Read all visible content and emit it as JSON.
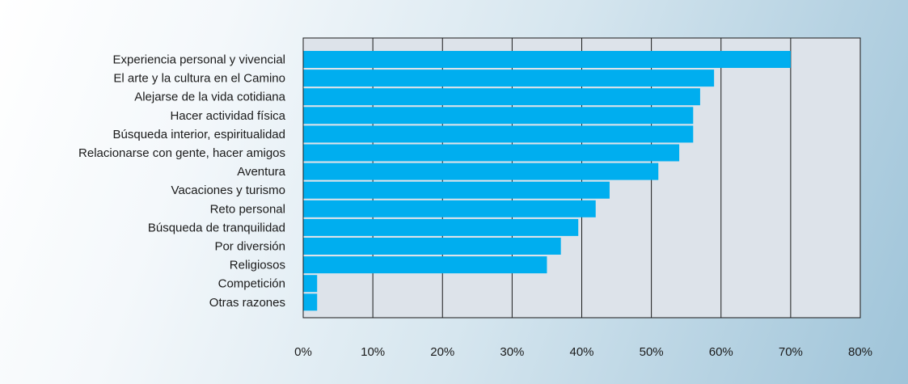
{
  "chart_data": {
    "type": "bar",
    "orientation": "horizontal",
    "categories": [
      "Experiencia personal y vivencial",
      "El arte y la cultura en el Camino",
      "Alejarse de la vida cotidiana",
      "Hacer actividad física",
      "Búsqueda interior, espiritualidad",
      "Relacionarse con gente, hacer amigos",
      "Aventura",
      "Vacaciones y turismo",
      "Reto personal",
      "Búsqueda de tranquilidad",
      "Por diversión",
      "Religiosos",
      "Competición",
      "Otras razones"
    ],
    "values": [
      70,
      59,
      57,
      56,
      56,
      54,
      51,
      44,
      42,
      39.5,
      37,
      35,
      2,
      2
    ],
    "value_unit": "%",
    "xlim": [
      0,
      80
    ],
    "xticks": [
      "0%",
      "10%",
      "20%",
      "30%",
      "40%",
      "50%",
      "60%",
      "70%",
      "80%"
    ],
    "grid": "vertical",
    "legend": "none",
    "title": "",
    "xlabel": "",
    "ylabel": "",
    "colors": {
      "bar": "#00aeef",
      "plot_background": "#dde3ea",
      "gridline": "#1a1a1a"
    }
  }
}
